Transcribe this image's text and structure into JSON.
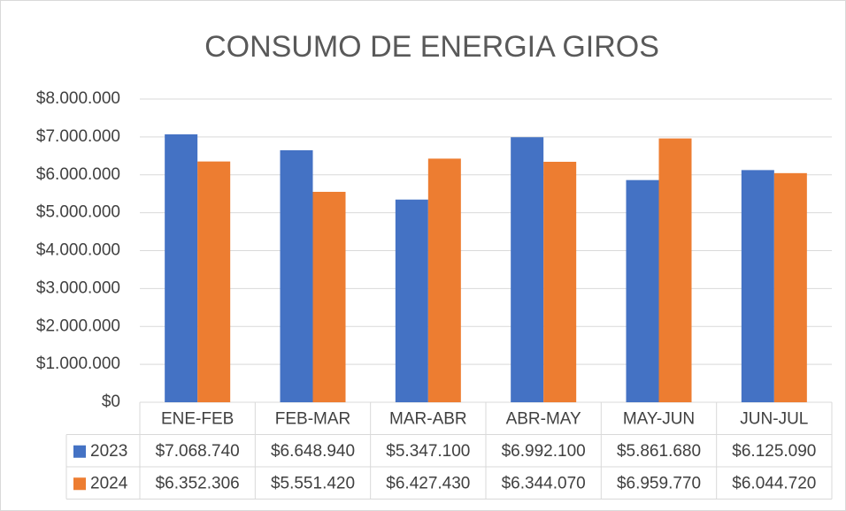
{
  "chart_data": {
    "type": "bar",
    "title": "CONSUMO DE ENERGIA GIROS",
    "categories": [
      "ENE-FEB",
      "FEB-MAR",
      "MAR-ABR",
      "ABR-MAY",
      "MAY-JUN",
      "JUN-JUL"
    ],
    "series": [
      {
        "name": "2023",
        "color": "#4472c4",
        "values": [
          7068740,
          6648940,
          5347100,
          6992100,
          5861680,
          6125090
        ],
        "value_labels": [
          "$7.068.740",
          "$6.648.940",
          "$5.347.100",
          "$6.992.100",
          "$5.861.680",
          "$6.125.090"
        ]
      },
      {
        "name": "2024",
        "color": "#ed7d31",
        "values": [
          6352306,
          5551420,
          6427430,
          6344070,
          6959770,
          6044720
        ],
        "value_labels": [
          "$6.352.306",
          "$5.551.420",
          "$6.427.430",
          "$6.344.070",
          "$6.959.770",
          "$6.044.720"
        ]
      }
    ],
    "ylim": [
      0,
      8000000
    ],
    "yticks": [
      {
        "value": 0,
        "label": "$0"
      },
      {
        "value": 1000000,
        "label": "$1.000.000"
      },
      {
        "value": 2000000,
        "label": "$2.000.000"
      },
      {
        "value": 3000000,
        "label": "$3.000.000"
      },
      {
        "value": 4000000,
        "label": "$4.000.000"
      },
      {
        "value": 5000000,
        "label": "$5.000.000"
      },
      {
        "value": 6000000,
        "label": "$6.000.000"
      },
      {
        "value": 7000000,
        "label": "$7.000.000"
      },
      {
        "value": 8000000,
        "label": "$8.000.000"
      }
    ],
    "grid": true
  }
}
